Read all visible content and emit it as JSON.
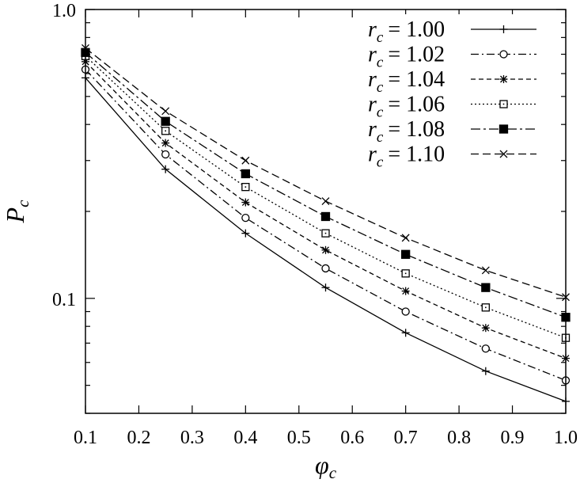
{
  "chart_data": {
    "type": "line",
    "title": "",
    "xlabel": "φ",
    "xlabel_sub": "c",
    "ylabel": "P",
    "ylabel_sub": "c",
    "xlim": [
      0.1,
      1.0
    ],
    "ylim": [
      0.04,
      1.0
    ],
    "y_scale": "log",
    "grid": false,
    "legend_position": "top-right",
    "x_ticks": [
      "0.1",
      "0.2",
      "0.3",
      "0.4",
      "0.5",
      "0.6",
      "0.7",
      "0.8",
      "0.9",
      "1.0"
    ],
    "y_ticks": [
      "0.1",
      "1.0"
    ],
    "x": [
      0.1,
      0.25,
      0.4,
      0.55,
      0.7,
      0.85,
      1.0
    ],
    "series": [
      {
        "name": "= 1.00",
        "name_var": "r",
        "name_sub": "c",
        "marker": "plus",
        "dash": "",
        "values": [
          0.58,
          0.28,
          0.168,
          0.109,
          0.076,
          0.056,
          0.044
        ]
      },
      {
        "name": "= 1.02",
        "name_var": "r",
        "name_sub": "c",
        "marker": "circle",
        "dash": "10 4 2 4",
        "values": [
          0.62,
          0.315,
          0.19,
          0.127,
          0.09,
          0.067,
          0.052
        ]
      },
      {
        "name": "= 1.04",
        "name_var": "r",
        "name_sub": "c",
        "marker": "star",
        "dash": "6 4",
        "values": [
          0.66,
          0.345,
          0.215,
          0.147,
          0.106,
          0.079,
          0.062
        ]
      },
      {
        "name": "= 1.06",
        "name_var": "r",
        "name_sub": "c",
        "marker": "open-square",
        "dash": "2 3",
        "values": [
          0.69,
          0.38,
          0.243,
          0.168,
          0.122,
          0.093,
          0.073
        ]
      },
      {
        "name": "= 1.08",
        "name_var": "r",
        "name_sub": "c",
        "marker": "filled-square",
        "dash": "12 4 3 4",
        "values": [
          0.71,
          0.41,
          0.27,
          0.192,
          0.142,
          0.109,
          0.086
        ]
      },
      {
        "name": "= 1.10",
        "name_var": "r",
        "name_sub": "c",
        "marker": "cross",
        "dash": "10 5",
        "values": [
          0.735,
          0.445,
          0.3,
          0.217,
          0.162,
          0.125,
          0.101
        ]
      }
    ]
  }
}
